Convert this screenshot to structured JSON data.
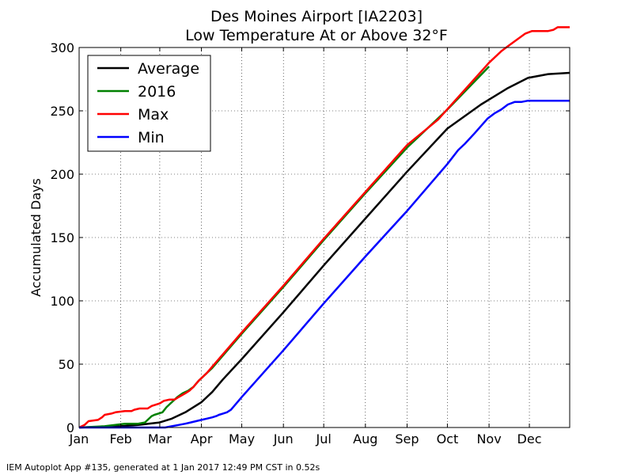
{
  "chart_data": {
    "type": "line",
    "title_lines": [
      "Des Moines Airport [IA2203]",
      "Low Temperature At or Above 32°F"
    ],
    "xlabel": "",
    "ylabel": "Accumulated Days",
    "ylim": [
      0,
      300
    ],
    "yticks": [
      0,
      50,
      100,
      150,
      200,
      250,
      300
    ],
    "xlim": [
      1,
      366
    ],
    "xtick_labels": [
      "Jan",
      "Feb",
      "Mar",
      "Apr",
      "May",
      "Jun",
      "Jul",
      "Aug",
      "Sep",
      "Oct",
      "Nov",
      "Dec"
    ],
    "xtick_days": [
      1,
      32,
      61,
      92,
      122,
      153,
      183,
      214,
      245,
      275,
      306,
      336
    ],
    "grid": true,
    "legend_position": "top-left",
    "series": [
      {
        "name": "Average",
        "color": "#000000",
        "points": [
          [
            1,
            0
          ],
          [
            32,
            1
          ],
          [
            45,
            2
          ],
          [
            61,
            4
          ],
          [
            70,
            7
          ],
          [
            80,
            12
          ],
          [
            92,
            20
          ],
          [
            100,
            28
          ],
          [
            108,
            38
          ],
          [
            122,
            54
          ],
          [
            153,
            91
          ],
          [
            183,
            128
          ],
          [
            214,
            165
          ],
          [
            245,
            202
          ],
          [
            275,
            236
          ],
          [
            300,
            255
          ],
          [
            320,
            268
          ],
          [
            335,
            276
          ],
          [
            350,
            279
          ],
          [
            366,
            280
          ]
        ]
      },
      {
        "name": "2016",
        "color": "#008000",
        "points": [
          [
            1,
            0
          ],
          [
            20,
            1
          ],
          [
            35,
            3
          ],
          [
            45,
            3
          ],
          [
            50,
            4
          ],
          [
            52,
            6
          ],
          [
            55,
            9
          ],
          [
            57,
            10
          ],
          [
            60,
            11
          ],
          [
            63,
            12
          ],
          [
            66,
            16
          ],
          [
            70,
            20
          ],
          [
            74,
            24
          ],
          [
            78,
            27
          ],
          [
            82,
            29
          ],
          [
            86,
            32
          ],
          [
            90,
            37
          ],
          [
            95,
            42
          ],
          [
            100,
            47
          ],
          [
            122,
            74
          ],
          [
            153,
            111
          ],
          [
            183,
            148
          ],
          [
            214,
            185
          ],
          [
            245,
            221
          ],
          [
            275,
            251
          ],
          [
            306,
            285
          ]
        ]
      },
      {
        "name": "Max",
        "color": "#ff0000",
        "points": [
          [
            1,
            0
          ],
          [
            5,
            2
          ],
          [
            8,
            5
          ],
          [
            15,
            6
          ],
          [
            18,
            8
          ],
          [
            20,
            10
          ],
          [
            25,
            11
          ],
          [
            28,
            12
          ],
          [
            35,
            13
          ],
          [
            40,
            13
          ],
          [
            42,
            14
          ],
          [
            46,
            15
          ],
          [
            52,
            15
          ],
          [
            55,
            17
          ],
          [
            58,
            18
          ],
          [
            61,
            19
          ],
          [
            64,
            21
          ],
          [
            68,
            22
          ],
          [
            72,
            22
          ],
          [
            75,
            24
          ],
          [
            80,
            27
          ],
          [
            83,
            29
          ],
          [
            86,
            32
          ],
          [
            90,
            37
          ],
          [
            92,
            39
          ],
          [
            96,
            43
          ],
          [
            100,
            48
          ],
          [
            122,
            75
          ],
          [
            153,
            112
          ],
          [
            183,
            149
          ],
          [
            214,
            186
          ],
          [
            245,
            223
          ],
          [
            268,
            243
          ],
          [
            306,
            288
          ],
          [
            315,
            297
          ],
          [
            320,
            301
          ],
          [
            333,
            311
          ],
          [
            338,
            313
          ],
          [
            350,
            313
          ],
          [
            354,
            314
          ],
          [
            357,
            316
          ],
          [
            366,
            316
          ]
        ]
      },
      {
        "name": "Min",
        "color": "#0000ff",
        "points": [
          [
            1,
            0
          ],
          [
            60,
            0
          ],
          [
            65,
            0
          ],
          [
            70,
            1
          ],
          [
            75,
            2
          ],
          [
            80,
            3
          ],
          [
            84,
            4
          ],
          [
            88,
            5
          ],
          [
            92,
            6
          ],
          [
            96,
            7
          ],
          [
            100,
            8
          ],
          [
            103,
            9
          ],
          [
            105,
            10
          ],
          [
            108,
            11
          ],
          [
            111,
            12
          ],
          [
            114,
            14
          ],
          [
            122,
            24
          ],
          [
            153,
            61
          ],
          [
            183,
            98
          ],
          [
            214,
            135
          ],
          [
            245,
            171
          ],
          [
            275,
            208
          ],
          [
            283,
            219
          ],
          [
            288,
            224
          ],
          [
            295,
            232
          ],
          [
            300,
            238
          ],
          [
            305,
            244
          ],
          [
            310,
            248
          ],
          [
            315,
            251
          ],
          [
            320,
            255
          ],
          [
            325,
            257
          ],
          [
            330,
            257
          ],
          [
            335,
            258
          ],
          [
            366,
            258
          ]
        ]
      }
    ]
  },
  "footer": "IEM Autoplot App #135, generated at 1 Jan 2017 12:49 PM CST in 0.52s"
}
